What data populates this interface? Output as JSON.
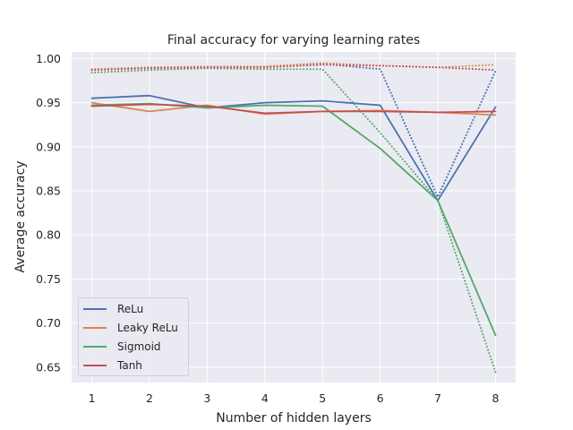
{
  "chart_data": {
    "type": "line",
    "title": "Final accuracy for varying learning rates",
    "xlabel": "Number of hidden layers",
    "ylabel": "Average accuracy",
    "x": [
      1,
      2,
      3,
      4,
      5,
      6,
      7,
      8
    ],
    "xticks": [
      "1",
      "2",
      "3",
      "4",
      "5",
      "6",
      "7",
      "8"
    ],
    "yticks": [
      "0.65",
      "0.70",
      "0.75",
      "0.80",
      "0.85",
      "0.90",
      "0.95",
      "1.00"
    ],
    "ytick_values": [
      0.65,
      0.7,
      0.75,
      0.8,
      0.85,
      0.9,
      0.95,
      1.0
    ],
    "xlim": [
      0.65,
      8.35
    ],
    "ylim": [
      0.6325,
      1.0075
    ],
    "grid": true,
    "legend_position": "lower-left",
    "series": [
      {
        "name": "ReLu",
        "color": "#4c72b0",
        "style": "solid",
        "values": [
          0.955,
          0.958,
          0.944,
          0.95,
          0.952,
          0.947,
          0.839,
          0.945
        ]
      },
      {
        "name": "Leaky ReLu",
        "color": "#dd8452",
        "style": "solid",
        "values": [
          0.95,
          0.94,
          0.947,
          0.937,
          0.94,
          0.941,
          0.939,
          0.936
        ]
      },
      {
        "name": "Sigmoid",
        "color": "#55a868",
        "style": "solid",
        "values": [
          0.947,
          0.949,
          0.944,
          0.947,
          0.946,
          0.898,
          0.839,
          0.686
        ]
      },
      {
        "name": "Tanh",
        "color": "#c44e52",
        "style": "solid",
        "values": [
          0.946,
          0.948,
          0.946,
          0.938,
          0.94,
          0.94,
          0.939,
          0.94
        ]
      },
      {
        "name": "",
        "color": "#4c72b0",
        "style": "dotted",
        "values": [
          0.987,
          0.99,
          0.99,
          0.991,
          0.994,
          0.988,
          0.843,
          0.986
        ]
      },
      {
        "name": "",
        "color": "#dd8452",
        "style": "dotted",
        "values": [
          0.988,
          0.99,
          0.991,
          0.991,
          0.995,
          0.992,
          0.99,
          0.993
        ]
      },
      {
        "name": "",
        "color": "#55a868",
        "style": "dotted",
        "values": [
          0.984,
          0.987,
          0.989,
          0.988,
          0.988,
          0.916,
          0.839,
          0.644
        ]
      },
      {
        "name": "",
        "color": "#c44e52",
        "style": "dotted",
        "values": [
          0.987,
          0.989,
          0.99,
          0.99,
          0.993,
          0.992,
          0.99,
          0.987
        ]
      }
    ]
  }
}
